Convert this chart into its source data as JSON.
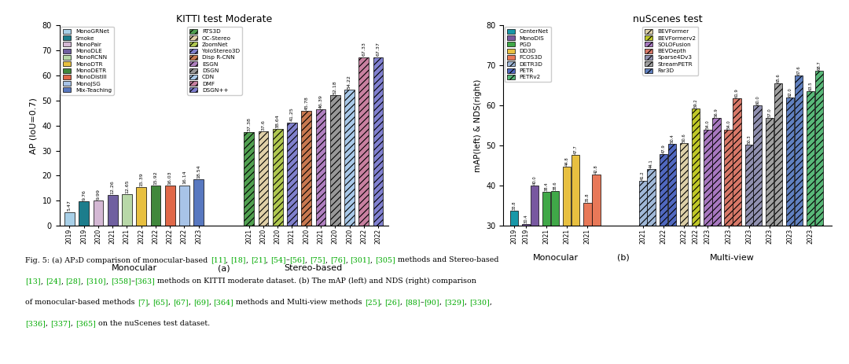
{
  "left_title": "KITTI test Moderate",
  "right_title": "nuScenes test",
  "left_ylabel": "AP (IoU=0.7)",
  "right_ylabel": "mAP(left) & NDS(right)",
  "left_ylim": [
    0,
    80
  ],
  "right_ylim": [
    30,
    80
  ],
  "caption_line1": "Fig. 5: (a) AP₃D comparison of monocular-based [11], [18], [21], [54]–[56], [75], [76], [301], [305] methods and Stereo-based",
  "caption_line2": "[13], [24], [28], [310], [358]–[363] methods on KITTI moderate dataset. (b) The mAP (left) and NDS (right) comparison",
  "caption_line3": "of monocular-based methods [7], [65], [67], [69], [364] methods and Multi-view methods [25], [26], [88]–[90], [329], [330],",
  "caption_line4": "[336], [337], [365] on the nuScenes test dataset.",
  "left_mono_bars": [
    {
      "label": "MonoGRNet",
      "year": "2019",
      "value": 5.47,
      "color": "#a8d0e8",
      "hatch": ""
    },
    {
      "label": "Smoke",
      "year": "2019",
      "value": 9.76,
      "color": "#1c7d8c",
      "hatch": ""
    },
    {
      "label": "MonoPair",
      "year": "2020",
      "value": 9.99,
      "color": "#d4b8d4",
      "hatch": ""
    },
    {
      "label": "MonoDLE",
      "year": "2021",
      "value": 12.26,
      "color": "#7060a0",
      "hatch": ""
    },
    {
      "label": "MonoRCNN",
      "year": "2021",
      "value": 12.65,
      "color": "#b8d8a8",
      "hatch": ""
    },
    {
      "label": "MonoDTR",
      "year": "2022",
      "value": 15.39,
      "color": "#e8c040",
      "hatch": ""
    },
    {
      "label": "MonoDETR",
      "year": "2022",
      "value": 15.92,
      "color": "#40883c",
      "hatch": ""
    },
    {
      "label": "MonoDistill",
      "year": "2022",
      "value": 16.03,
      "color": "#e06848",
      "hatch": ""
    },
    {
      "label": "MonoJSG",
      "year": "2022",
      "value": 16.14,
      "color": "#a8c4e8",
      "hatch": ""
    },
    {
      "label": "Mix-Teaching",
      "year": "2023",
      "value": 18.54,
      "color": "#5878c0",
      "hatch": ""
    }
  ],
  "left_stereo_bars": [
    {
      "label": "RTS3D",
      "year": "2021",
      "value": 37.38,
      "color": "#50a050",
      "hatch": "////"
    },
    {
      "label": "OC-Stereo",
      "year": "2020",
      "value": 37.6,
      "color": "#e0d0a8",
      "hatch": "////"
    },
    {
      "label": "ZoomNet",
      "year": "2020",
      "value": 38.64,
      "color": "#b0c850",
      "hatch": "////"
    },
    {
      "label": "YoloStereo3D",
      "year": "2021",
      "value": 41.25,
      "color": "#8080cc",
      "hatch": "////"
    },
    {
      "label": "Disp R-CNN",
      "year": "2020",
      "value": 45.78,
      "color": "#c87850",
      "hatch": "////"
    },
    {
      "label": "ESGN",
      "year": "2021",
      "value": 46.39,
      "color": "#b080c0",
      "hatch": "////"
    },
    {
      "label": "DSGN",
      "year": "2020",
      "value": 52.18,
      "color": "#989898",
      "hatch": "////"
    },
    {
      "label": "CDN",
      "year": "2020",
      "value": 54.22,
      "color": "#a8c8e8",
      "hatch": "////"
    },
    {
      "label": "DMF",
      "year": "2022",
      "value": 67.33,
      "color": "#c880a0",
      "hatch": "////"
    },
    {
      "label": "DSGN++",
      "year": "2022",
      "value": 67.37,
      "color": "#8080d0",
      "hatch": "////"
    }
  ],
  "right_mono_bars": [
    {
      "label": "CenterNet",
      "year": "2019",
      "value": 33.8,
      "color": "#1898a8",
      "hatch": ""
    },
    {
      "label": "MonoDIS",
      "year": "2019",
      "value": 30.4,
      "color": "#7858a0",
      "hatch": ""
    },
    {
      "label": "MonoDIS_nds",
      "year": "2019",
      "value": 40.0,
      "color": "#7858a0",
      "hatch": ""
    },
    {
      "label": "PGD",
      "year": "2021",
      "value": 38.4,
      "color": "#40a848",
      "hatch": ""
    },
    {
      "label": "PGD_nds",
      "year": "2021",
      "value": 38.6,
      "color": "#40a848",
      "hatch": ""
    },
    {
      "label": "DD3D",
      "year": "2021",
      "value": 44.8,
      "color": "#e8c040",
      "hatch": ""
    },
    {
      "label": "DD3D_nds",
      "year": "2021",
      "value": 47.7,
      "color": "#e8c040",
      "hatch": ""
    },
    {
      "label": "FCOS3D",
      "year": "2021",
      "value": 35.8,
      "color": "#e87858",
      "hatch": ""
    },
    {
      "label": "FCOS3D_nds",
      "year": "2021",
      "value": 42.8,
      "color": "#e87858",
      "hatch": ""
    }
  ],
  "right_multi_bars": [
    {
      "label": "DETR3D",
      "year": "2021",
      "value": 41.2,
      "color": "#a0b8d8",
      "hatch": "////"
    },
    {
      "label": "DETR3D_nds",
      "year": "2021",
      "value": 44.1,
      "color": "#a0b8d8",
      "hatch": "////"
    },
    {
      "label": "PETR",
      "year": "2022",
      "value": 47.9,
      "color": "#5068c0",
      "hatch": "////"
    },
    {
      "label": "PETR_nds",
      "year": "2022",
      "value": 50.4,
      "color": "#5068c0",
      "hatch": "////"
    },
    {
      "label": "BEVFormer",
      "year": "2022",
      "value": 50.6,
      "color": "#ddd0a8",
      "hatch": "////"
    },
    {
      "label": "BEVFormerv2",
      "year": "2022",
      "value": 59.2,
      "color": "#c0c828",
      "hatch": "////"
    },
    {
      "label": "SOLOFusion",
      "year": "2023",
      "value": 54.0,
      "color": "#a878c0",
      "hatch": "////"
    },
    {
      "label": "SOLOFusion_nds",
      "year": "2023",
      "value": 56.9,
      "color": "#a878c0",
      "hatch": "////"
    },
    {
      "label": "BEVDepth",
      "year": "2023",
      "value": 54.0,
      "color": "#d87868",
      "hatch": "////"
    },
    {
      "label": "BEVDepth_nds",
      "year": "2023",
      "value": 61.9,
      "color": "#d87868",
      "hatch": "////"
    },
    {
      "label": "Sparse4Dv3",
      "year": "2023",
      "value": 50.3,
      "color": "#9090b0",
      "hatch": "////"
    },
    {
      "label": "Sparse4Dv3_nds",
      "year": "2023",
      "value": 60.0,
      "color": "#9090b0",
      "hatch": "////"
    },
    {
      "label": "StreamPETR",
      "year": "2023",
      "value": 57.0,
      "color": "#a0a0a0",
      "hatch": "////"
    },
    {
      "label": "StreamPETR_nds",
      "year": "2023",
      "value": 65.6,
      "color": "#a0a0a0",
      "hatch": "////"
    },
    {
      "label": "Far3D",
      "year": "2023",
      "value": 62.0,
      "color": "#6080c0",
      "hatch": "////"
    },
    {
      "label": "Far3D_nds",
      "year": "2023",
      "value": 67.6,
      "color": "#6080c0",
      "hatch": "////"
    },
    {
      "label": "PETRv2",
      "year": "2023",
      "value": 63.5,
      "color": "#58b878",
      "hatch": "////"
    },
    {
      "label": "PETRv2_nds",
      "year": "2023",
      "value": 68.7,
      "color": "#58b878",
      "hatch": "////"
    }
  ],
  "left_legend_col1": [
    {
      "label": "MonoGRNet",
      "color": "#a8d0e8",
      "hatch": ""
    },
    {
      "label": "Smoke",
      "color": "#1c7d8c",
      "hatch": ""
    },
    {
      "label": "MonoPair",
      "color": "#d4b8d4",
      "hatch": ""
    },
    {
      "label": "MonoDLE",
      "color": "#7060a0",
      "hatch": ""
    },
    {
      "label": "MonoRCNN",
      "color": "#b8d8a8",
      "hatch": ""
    },
    {
      "label": "MonoDTR",
      "color": "#e8c040",
      "hatch": ""
    },
    {
      "label": "MonoDETR",
      "color": "#40883c",
      "hatch": ""
    },
    {
      "label": "MonoDistill",
      "color": "#e06848",
      "hatch": ""
    },
    {
      "label": "MonoJSG",
      "color": "#a8c4e8",
      "hatch": ""
    },
    {
      "label": "Mix-Teaching",
      "color": "#5878c0",
      "hatch": ""
    }
  ],
  "left_legend_col2": [
    {
      "label": "RTS3D",
      "color": "#50a050",
      "hatch": "////"
    },
    {
      "label": "OC-Stereo",
      "color": "#e0d0a8",
      "hatch": "////"
    },
    {
      "label": "ZoomNet",
      "color": "#b0c850",
      "hatch": "////"
    },
    {
      "label": "YoloStereo3D",
      "color": "#8080cc",
      "hatch": "////"
    },
    {
      "label": "Disp R-CNN",
      "color": "#c87850",
      "hatch": "////"
    },
    {
      "label": "ESGN",
      "color": "#b080c0",
      "hatch": "////"
    },
    {
      "label": "DSGN",
      "color": "#989898",
      "hatch": "////"
    },
    {
      "label": "CDN",
      "color": "#a8c8e8",
      "hatch": "////"
    },
    {
      "label": "DMF",
      "color": "#c880a0",
      "hatch": "////"
    },
    {
      "label": "DSGN++",
      "color": "#8080d0",
      "hatch": "////"
    }
  ],
  "right_legend_col1": [
    {
      "label": "CenterNet",
      "color": "#1898a8",
      "hatch": ""
    },
    {
      "label": "MonoDIS",
      "color": "#7858a0",
      "hatch": ""
    },
    {
      "label": "PGD",
      "color": "#40a848",
      "hatch": ""
    },
    {
      "label": "DD3D",
      "color": "#e8c040",
      "hatch": ""
    },
    {
      "label": "FCOS3D",
      "color": "#e87858",
      "hatch": ""
    },
    {
      "label": "DETR3D",
      "color": "#a0b8d8",
      "hatch": "////"
    },
    {
      "label": "PETR",
      "color": "#5068c0",
      "hatch": "////"
    },
    {
      "label": "PETRv2",
      "color": "#58b878",
      "hatch": "////"
    }
  ],
  "right_legend_col2": [
    {
      "label": "BEVFormer",
      "color": "#ddd0a8",
      "hatch": "////"
    },
    {
      "label": "BEVFormerv2",
      "color": "#c0c828",
      "hatch": "////"
    },
    {
      "label": "SOLOFusion",
      "color": "#a878c0",
      "hatch": "////"
    },
    {
      "label": "BEVDepth",
      "color": "#d87868",
      "hatch": "////"
    },
    {
      "label": "Sparse4Dv3",
      "color": "#9090b0",
      "hatch": "////"
    },
    {
      "label": "StreamPETR",
      "color": "#a0a0a0",
      "hatch": "////"
    },
    {
      "label": "Far3D",
      "color": "#6080c0",
      "hatch": "////"
    }
  ]
}
